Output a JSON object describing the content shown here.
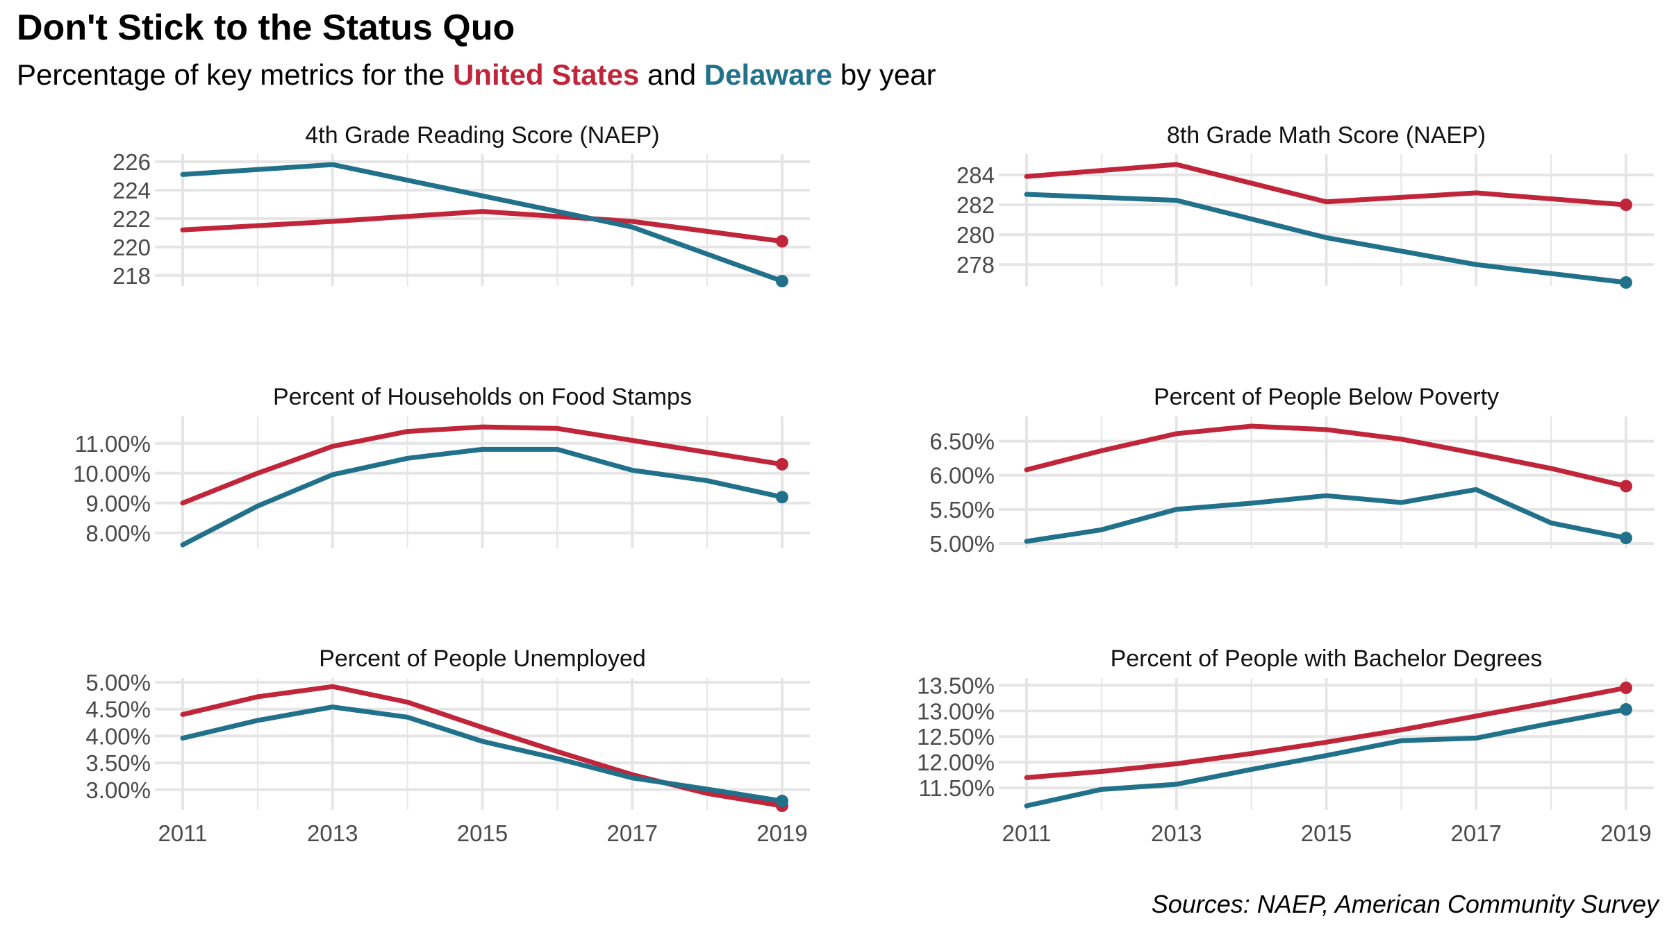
{
  "title": "Don't Stick to the Status Quo",
  "subtitle": {
    "prefix": "Percentage of key metrics for the",
    "us_label": "United States",
    "and": "and",
    "de_label": "Delaware",
    "suffix": "by year"
  },
  "caption": "Sources: NAEP, American Community Survey",
  "colors": {
    "united_states": "#c0253a",
    "delaware": "#21718b",
    "grid": "#e5e5e5"
  },
  "chart_data": [
    {
      "type": "line",
      "title": "4th Grade Reading Score (NAEP)",
      "x": [
        2011,
        2013,
        2015,
        2017,
        2019
      ],
      "x_ticks": [
        "2011",
        "2013",
        "2015",
        "2017",
        "2019"
      ],
      "y_ticks": [
        "226",
        "224",
        "222",
        "220",
        "218"
      ],
      "ylim": [
        217.6,
        226
      ],
      "xlim": [
        2011,
        2019
      ],
      "series": [
        {
          "name": "United States",
          "values": [
            221.2,
            221.8,
            222.5,
            221.8,
            220.4
          ]
        },
        {
          "name": "Delaware",
          "values": [
            225.1,
            225.8,
            223.6,
            221.4,
            217.6
          ]
        }
      ]
    },
    {
      "type": "line",
      "title": "8th Grade Math Score (NAEP)",
      "x": [
        2011,
        2013,
        2015,
        2017,
        2019
      ],
      "x_ticks": [
        "2011",
        "2013",
        "2015",
        "2017",
        "2019"
      ],
      "y_ticks": [
        "284",
        "282",
        "280",
        "278"
      ],
      "ylim": [
        276.8,
        284.7
      ],
      "xlim": [
        2011,
        2019
      ],
      "series": [
        {
          "name": "United States",
          "values": [
            283.9,
            284.7,
            282.2,
            282.8,
            282.0
          ]
        },
        {
          "name": "Delaware",
          "values": [
            282.7,
            282.3,
            279.8,
            278.0,
            276.8
          ]
        }
      ]
    },
    {
      "type": "line",
      "title": "Percent of Households on Food Stamps",
      "x": [
        2011,
        2012,
        2013,
        2014,
        2015,
        2016,
        2017,
        2018,
        2019
      ],
      "x_ticks": [
        "2011",
        "2013",
        "2015",
        "2017",
        "2019"
      ],
      "y_ticks": [
        "11.00%",
        "10.00%",
        "9.00%",
        "8.00%"
      ],
      "ylim": [
        7.6,
        11.6
      ],
      "xlim": [
        2011,
        2019
      ],
      "series": [
        {
          "name": "United States",
          "values": [
            9.0,
            10.0,
            10.9,
            11.4,
            11.55,
            11.5,
            11.1,
            10.7,
            10.3
          ]
        },
        {
          "name": "Delaware",
          "values": [
            7.6,
            8.9,
            9.95,
            10.5,
            10.8,
            10.8,
            10.1,
            9.75,
            9.2
          ]
        }
      ]
    },
    {
      "type": "line",
      "title": "Percent of People Below Poverty",
      "x": [
        2011,
        2012,
        2013,
        2014,
        2015,
        2016,
        2017,
        2018,
        2019
      ],
      "x_ticks": [
        "2011",
        "2013",
        "2015",
        "2017",
        "2019"
      ],
      "y_ticks": [
        "6.50%",
        "6.00%",
        "5.50%",
        "5.00%"
      ],
      "ylim": [
        5.03,
        6.72
      ],
      "xlim": [
        2011,
        2019
      ],
      "series": [
        {
          "name": "United States",
          "values": [
            6.08,
            6.36,
            6.61,
            6.72,
            6.67,
            6.53,
            6.32,
            6.1,
            5.84
          ]
        },
        {
          "name": "Delaware",
          "values": [
            5.03,
            5.2,
            5.5,
            5.59,
            5.7,
            5.6,
            5.79,
            5.3,
            5.08
          ]
        }
      ]
    },
    {
      "type": "line",
      "title": "Percent of People Unemployed",
      "x": [
        2011,
        2012,
        2013,
        2014,
        2015,
        2016,
        2017,
        2018,
        2019
      ],
      "x_ticks": [
        "2011",
        "2013",
        "2015",
        "2017",
        "2019"
      ],
      "y_ticks": [
        "5.00%",
        "4.50%",
        "4.00%",
        "3.50%",
        "3.00%"
      ],
      "ylim": [
        2.7,
        5.0
      ],
      "xlim": [
        2011,
        2019
      ],
      "series": [
        {
          "name": "United States",
          "values": [
            4.4,
            4.73,
            4.92,
            4.63,
            4.16,
            3.71,
            3.28,
            2.93,
            2.7
          ]
        },
        {
          "name": "Delaware",
          "values": [
            3.96,
            4.29,
            4.54,
            4.35,
            3.9,
            3.58,
            3.22,
            3.01,
            2.79
          ]
        }
      ]
    },
    {
      "type": "line",
      "title": "Percent of People with Bachelor Degrees",
      "x": [
        2011,
        2012,
        2013,
        2014,
        2015,
        2016,
        2017,
        2018,
        2019
      ],
      "x_ticks": [
        "2011",
        "2013",
        "2015",
        "2017",
        "2019"
      ],
      "y_ticks": [
        "13.50%",
        "13.00%",
        "12.50%",
        "12.00%",
        "11.50%"
      ],
      "ylim": [
        11.15,
        13.45
      ],
      "xlim": [
        2011,
        2019
      ],
      "series": [
        {
          "name": "United States",
          "values": [
            11.7,
            11.82,
            11.97,
            12.17,
            12.39,
            12.63,
            12.9,
            13.17,
            13.45
          ]
        },
        {
          "name": "Delaware",
          "values": [
            11.15,
            11.47,
            11.57,
            11.86,
            12.13,
            12.42,
            12.47,
            12.76,
            13.03
          ]
        }
      ]
    }
  ]
}
